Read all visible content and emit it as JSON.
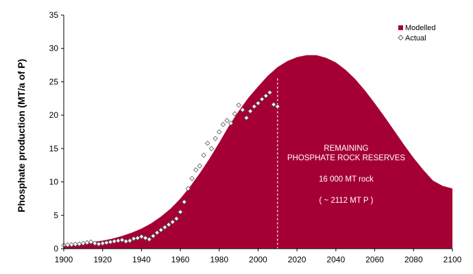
{
  "chart_data": {
    "type": "area",
    "title": "",
    "xlabel": "",
    "ylabel": "Phosphate production (MT/a of P)",
    "xlim": [
      1900,
      2100
    ],
    "ylim": [
      0,
      35
    ],
    "xticks": [
      1900,
      1920,
      1940,
      1960,
      1980,
      2000,
      2020,
      2040,
      2060,
      2080,
      2100
    ],
    "yticks": [
      0,
      5,
      10,
      15,
      20,
      25,
      30,
      35
    ],
    "grid": false,
    "legend": {
      "placement": "top-right",
      "entries": [
        "Modelled",
        "Actual"
      ]
    },
    "colors": {
      "modelled": "#a50034",
      "actual_marker": "#ffffff",
      "actual_edge": "#555555"
    },
    "series": [
      {
        "name": "Modelled",
        "kind": "area",
        "x": [
          1900,
          1905,
          1910,
          1915,
          1920,
          1925,
          1930,
          1935,
          1940,
          1945,
          1950,
          1955,
          1960,
          1965,
          1970,
          1975,
          1980,
          1985,
          1990,
          1995,
          2000,
          2005,
          2010,
          2015,
          2020,
          2025,
          2030,
          2035,
          2040,
          2045,
          2050,
          2055,
          2060,
          2065,
          2070,
          2075,
          2080,
          2085,
          2090,
          2095,
          2100
        ],
        "y": [
          0.5,
          0.6,
          0.8,
          1.0,
          1.2,
          1.5,
          1.9,
          2.4,
          3.0,
          3.8,
          4.8,
          6.0,
          7.5,
          9.3,
          11.3,
          13.5,
          15.9,
          18.4,
          20.6,
          22.6,
          24.3,
          25.9,
          27.2,
          28.1,
          28.7,
          29.0,
          29.0,
          28.6,
          27.9,
          26.8,
          25.4,
          23.7,
          21.8,
          19.8,
          17.7,
          15.6,
          13.6,
          11.8,
          10.2,
          9.4,
          9.0
        ]
      },
      {
        "name": "Actual",
        "kind": "scatter",
        "x": [
          1900,
          1902,
          1904,
          1906,
          1908,
          1910,
          1912,
          1914,
          1916,
          1918,
          1920,
          1922,
          1924,
          1926,
          1928,
          1930,
          1932,
          1934,
          1936,
          1938,
          1940,
          1942,
          1944,
          1946,
          1948,
          1950,
          1952,
          1954,
          1956,
          1958,
          1960,
          1962,
          1964,
          1966,
          1968,
          1970,
          1972,
          1974,
          1976,
          1978,
          1980,
          1982,
          1984,
          1986,
          1988,
          1990,
          1992,
          1994,
          1996,
          1998,
          2000,
          2002,
          2004,
          2006,
          2008,
          2010
        ],
        "y": [
          0.5,
          0.55,
          0.6,
          0.65,
          0.7,
          0.8,
          0.9,
          1.0,
          0.8,
          0.7,
          0.8,
          0.9,
          1.0,
          1.1,
          1.2,
          1.3,
          1.1,
          1.2,
          1.5,
          1.6,
          1.8,
          1.6,
          1.4,
          1.9,
          2.4,
          2.8,
          3.2,
          3.6,
          4.0,
          4.5,
          5.5,
          7.0,
          9.0,
          10.5,
          11.8,
          12.4,
          14.0,
          15.8,
          15.0,
          16.5,
          17.5,
          18.6,
          19.2,
          18.8,
          20.2,
          21.5,
          20.8,
          19.6,
          20.6,
          21.3,
          21.8,
          22.4,
          22.9,
          23.4,
          21.6,
          21.3
        ]
      }
    ],
    "annotations": [
      "REMAINING",
      "PHOSPHATE ROCK RESERVES",
      "16 000 MT rock",
      "( ~ 2112 MT P )"
    ],
    "vline_x": 2010
  }
}
